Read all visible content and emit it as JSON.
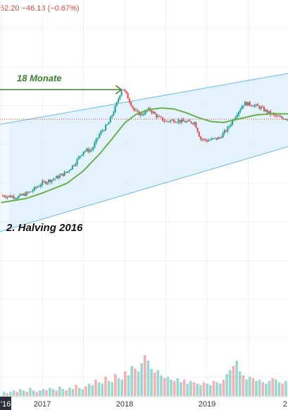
{
  "header": {
    "price_fragment": "52.20",
    "change": "−46.13 (−0.67%)"
  },
  "colors": {
    "up": "#26a69a",
    "down": "#ef5350",
    "ma": "#6ab04c",
    "channel_line": "#7cc4ee",
    "channel_fill": "#dbeefb",
    "arrow": "#3e7d2a",
    "price_line": "#e0493f"
  },
  "chart_data": {
    "type": "candlestick",
    "x_ticks": [
      "'16",
      "2017",
      "2018",
      "2019",
      "2"
    ],
    "annotations": [
      {
        "text": "18 Monate"
      },
      {
        "text": "2. Halving 2016"
      }
    ],
    "series": [
      {
        "type": "candlestick",
        "close_path": [
          {
            "t": 2016.5,
            "v": 650
          },
          {
            "t": 2016.7,
            "v": 620
          },
          {
            "t": 2016.85,
            "v": 720
          },
          {
            "t": 2017.0,
            "v": 960
          },
          {
            "t": 2017.15,
            "v": 1100
          },
          {
            "t": 2017.3,
            "v": 1350
          },
          {
            "t": 2017.4,
            "v": 1800
          },
          {
            "t": 2017.5,
            "v": 2600
          },
          {
            "t": 2017.6,
            "v": 2700
          },
          {
            "t": 2017.7,
            "v": 4500
          },
          {
            "t": 2017.8,
            "v": 6000
          },
          {
            "t": 2017.9,
            "v": 11000
          },
          {
            "t": 2017.97,
            "v": 19000
          },
          {
            "t": 2018.05,
            "v": 13000
          },
          {
            "t": 2018.12,
            "v": 9000
          },
          {
            "t": 2018.2,
            "v": 8000
          },
          {
            "t": 2018.3,
            "v": 9500
          },
          {
            "t": 2018.4,
            "v": 7500
          },
          {
            "t": 2018.5,
            "v": 6500
          },
          {
            "t": 2018.6,
            "v": 6800
          },
          {
            "t": 2018.7,
            "v": 6500
          },
          {
            "t": 2018.85,
            "v": 6300
          },
          {
            "t": 2018.92,
            "v": 3800
          },
          {
            "t": 2019.0,
            "v": 3600
          },
          {
            "t": 2019.15,
            "v": 3900
          },
          {
            "t": 2019.25,
            "v": 5200
          },
          {
            "t": 2019.35,
            "v": 8000
          },
          {
            "t": 2019.45,
            "v": 11500
          },
          {
            "t": 2019.55,
            "v": 11000
          },
          {
            "t": 2019.65,
            "v": 10000
          },
          {
            "t": 2019.75,
            "v": 8500
          },
          {
            "t": 2019.85,
            "v": 7500
          },
          {
            "t": 2019.95,
            "v": 7200
          },
          {
            "t": 2020.05,
            "v": 7000
          }
        ]
      },
      {
        "type": "line",
        "points": [
          {
            "t": 2016.5,
            "v": 520
          },
          {
            "t": 2016.8,
            "v": 590
          },
          {
            "t": 2017.0,
            "v": 700
          },
          {
            "t": 2017.3,
            "v": 950
          },
          {
            "t": 2017.5,
            "v": 1400
          },
          {
            "t": 2017.7,
            "v": 2400
          },
          {
            "t": 2017.85,
            "v": 3800
          },
          {
            "t": 2018.0,
            "v": 6200
          },
          {
            "t": 2018.15,
            "v": 8300
          },
          {
            "t": 2018.3,
            "v": 9400
          },
          {
            "t": 2018.45,
            "v": 9900
          },
          {
            "t": 2018.6,
            "v": 9600
          },
          {
            "t": 2018.75,
            "v": 8500
          },
          {
            "t": 2018.9,
            "v": 7300
          },
          {
            "t": 2019.05,
            "v": 6500
          },
          {
            "t": 2019.2,
            "v": 6300
          },
          {
            "t": 2019.4,
            "v": 7100
          },
          {
            "t": 2019.6,
            "v": 8000
          },
          {
            "t": 2019.8,
            "v": 8300
          },
          {
            "t": 2020.05,
            "v": 8200
          }
        ]
      },
      {
        "type": "bar",
        "name": "volume",
        "values": [
          3,
          2,
          3,
          4,
          3,
          5,
          4,
          3,
          6,
          4,
          3,
          4,
          5,
          4,
          6,
          5,
          4,
          7,
          5,
          4,
          6,
          5,
          8,
          6,
          5,
          7,
          9,
          8,
          12,
          10,
          9,
          14,
          11,
          10,
          16,
          13,
          12,
          18,
          15,
          22,
          20,
          18,
          24,
          30,
          26,
          20,
          17,
          19,
          15,
          13,
          14,
          12,
          11,
          13,
          10,
          12,
          9,
          11,
          10,
          9,
          8,
          10,
          9,
          8,
          11,
          10,
          9,
          12,
          16,
          19,
          22,
          26,
          18,
          15,
          12,
          14,
          13,
          11,
          12,
          10,
          9,
          11,
          13,
          12,
          10,
          9,
          11,
          8
        ]
      }
    ],
    "channel": {
      "upper": [
        {
          "t": 2015.5,
          "v": 3800
        },
        {
          "t": 2020.2,
          "v": 32000
        }
      ],
      "lower": [
        {
          "t": 2015.5,
          "v": 100
        },
        {
          "t": 2020.2,
          "v": 3500
        }
      ],
      "highlight_range": [
        2016.6,
        2020.2
      ]
    },
    "arrow": {
      "from_t": 2016.0,
      "to_t": 2017.96,
      "level": 17500
    },
    "current_price_line": 7000,
    "grid": true,
    "y_scale": "log",
    "x_range": [
      2016.52,
      2020.02
    ]
  }
}
